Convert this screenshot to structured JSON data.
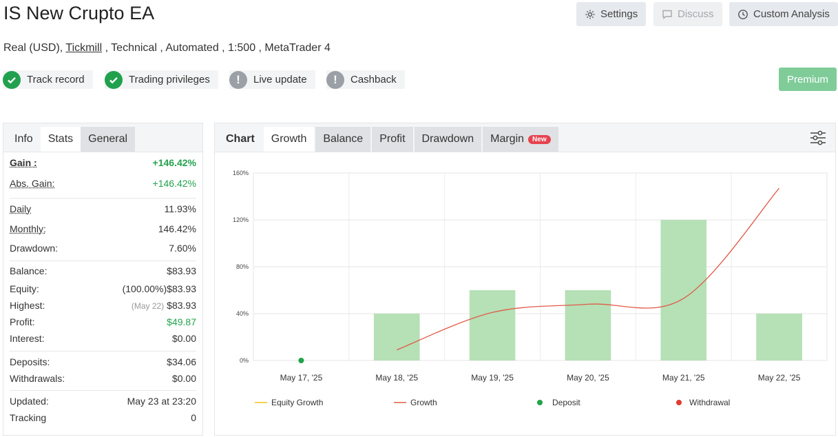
{
  "header": {
    "title": "IS New Crupto EA",
    "buttons": {
      "settings": "Settings",
      "discuss": "Discuss",
      "custom_analysis": "Custom Analysis"
    }
  },
  "subtitle": {
    "prefix": "Real (USD), ",
    "broker": "Tickmill",
    "suffix": " , Technical , Automated , 1:500 , MetaTrader 4"
  },
  "badges": [
    "Track record",
    "Trading privileges",
    "Live update",
    "Cashback"
  ],
  "premium_label": "Premium",
  "left_tabs": [
    "Info",
    "Stats",
    "General"
  ],
  "stats": {
    "gain": {
      "label": "Gain :",
      "value": "+146.42%"
    },
    "abs_gain": {
      "label": "Abs. Gain:",
      "value": "+146.42%"
    },
    "daily": {
      "label": "Daily",
      "value": "11.93%"
    },
    "monthly": {
      "label": "Monthly:",
      "value": "146.42%"
    },
    "drawdown": {
      "label": "Drawdown:",
      "value": "7.60%"
    },
    "balance": {
      "label": "Balance:",
      "value": "$83.93"
    },
    "equity": {
      "label": "Equity:",
      "value": "(100.00%)$83.93"
    },
    "highest": {
      "label": "Highest:",
      "note": "(May 22)",
      "value": "$83.93"
    },
    "profit": {
      "label": "Profit:",
      "value": "$49.87"
    },
    "interest": {
      "label": "Interest:",
      "value": "$0.00"
    },
    "deposits": {
      "label": "Deposits:",
      "value": "$34.06"
    },
    "withdrawals": {
      "label": "Withdrawals:",
      "value": "$0.00"
    },
    "updated": {
      "label": "Updated:",
      "value": "May 23 at 23:20"
    },
    "tracking": {
      "label": "Tracking",
      "value": "0"
    }
  },
  "chart_tabs": [
    "Chart",
    "Growth",
    "Balance",
    "Profit",
    "Drawdown",
    "Margin"
  ],
  "new_badge": "New",
  "colors": {
    "green": "#23a24d",
    "bar": "#b6e0b6",
    "growth_line": "#e05a48",
    "equity_line": "#f0c419",
    "deposit": "#22a34a",
    "withdrawal": "#e03c32"
  },
  "chart_data": {
    "type": "bar",
    "categories": [
      "May 17, '25",
      "May 18, '25",
      "May 19, '25",
      "May 20, '25",
      "May 21, '25",
      "May 22, '25"
    ],
    "ylim": [
      0,
      160
    ],
    "yticks": [
      0,
      40,
      80,
      120,
      160
    ],
    "ytick_labels": [
      "0%",
      "40%",
      "80%",
      "120%",
      "160%"
    ],
    "series": [
      {
        "name": "Growth",
        "type": "bar",
        "values": [
          0,
          40,
          60,
          60,
          120,
          40
        ]
      },
      {
        "name": "Growth",
        "type": "line",
        "x": [
          1,
          2,
          3,
          4,
          5
        ],
        "values": [
          9,
          41,
          48,
          53,
          147
        ]
      },
      {
        "name": "Deposit",
        "type": "scatter",
        "x": [
          0
        ],
        "values": [
          0
        ]
      }
    ],
    "legend": [
      "Equity Growth",
      "Growth",
      "Deposit",
      "Withdrawal"
    ],
    "legend_position": "bottom"
  }
}
